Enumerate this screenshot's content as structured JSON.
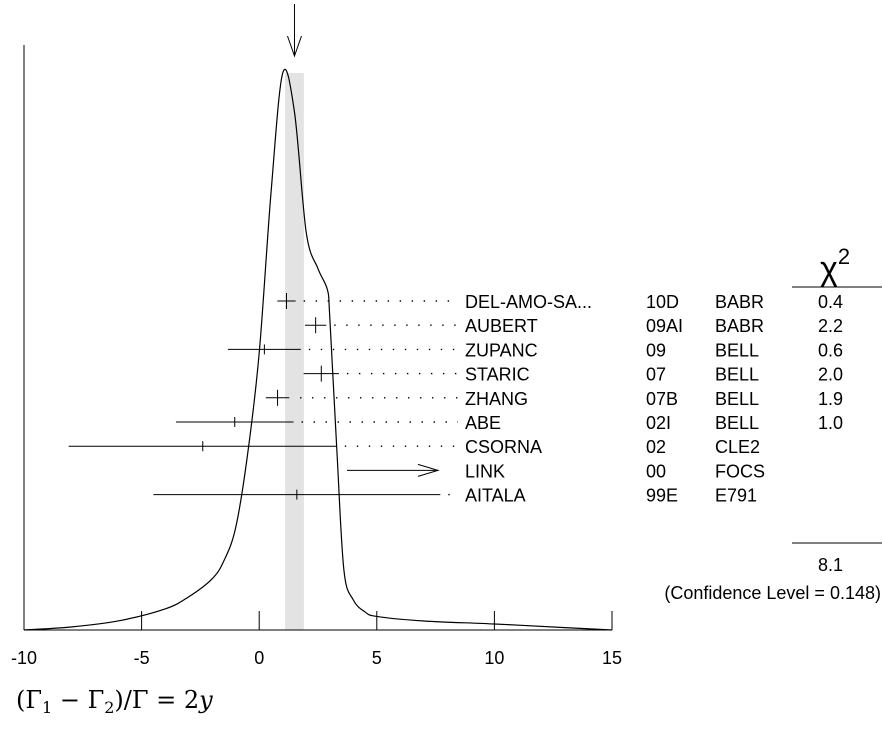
{
  "chart_data": {
    "type": "ideogram",
    "x_axis": {
      "range": [
        -10,
        15
      ],
      "ticks": [
        -10,
        -5,
        0,
        5,
        10,
        15
      ],
      "tick_labels": [
        "-10",
        "-5",
        "0",
        "5",
        "10",
        "15"
      ],
      "label_parts": {
        "open": "(Γ",
        "sub1": "1",
        "mid": " − Γ",
        "sub2": "2",
        "close": ")/Γ = 2",
        "var": "y"
      }
    },
    "average": {
      "value": 1.5,
      "error_band": [
        1.1,
        1.9
      ]
    },
    "chi2_header": {
      "symbol": "χ",
      "power": "2"
    },
    "measurements": [
      {
        "name": "DEL-AMO-SA...",
        "year": "10D",
        "experiment": "BABR",
        "value": 1.16,
        "error": 0.39,
        "chi2": "0.4"
      },
      {
        "name": "AUBERT",
        "year": "09AI",
        "experiment": "BABR",
        "value": 2.4,
        "error": 0.45,
        "chi2": "2.2"
      },
      {
        "name": "ZUPANC",
        "year": "09",
        "experiment": "BELL",
        "value": 0.22,
        "error": 1.55,
        "chi2": "0.6"
      },
      {
        "name": "STARIC",
        "year": "07",
        "experiment": "BELL",
        "value": 2.64,
        "error": 0.75,
        "chi2": "2.0"
      },
      {
        "name": "ZHANG",
        "year": "07B",
        "experiment": "BELL",
        "value": 0.78,
        "error": 0.5,
        "chi2": "1.9"
      },
      {
        "name": "ABE",
        "year": "02I",
        "experiment": "BELL",
        "value": -1.04,
        "error": 2.5,
        "chi2": "1.0"
      },
      {
        "name": "CSORNA",
        "year": "02",
        "experiment": "CLE2",
        "value": -2.4,
        "error": 5.7,
        "chi2": ""
      },
      {
        "name": "LINK",
        "year": "00",
        "experiment": "FOCS",
        "lower_limit": 3.7,
        "chi2": ""
      },
      {
        "name": "AITALA",
        "year": "99E",
        "experiment": "E791",
        "value": 1.6,
        "error": 6.1,
        "chi2": ""
      }
    ],
    "chi2_total": "8.1",
    "confidence_level": "(Confidence Level = 0.148)",
    "ideogram_curve": [
      [
        -10,
        0.0
      ],
      [
        -8,
        0.01
      ],
      [
        -6,
        0.03
      ],
      [
        -4,
        0.07
      ],
      [
        -3,
        0.11
      ],
      [
        -2,
        0.17
      ],
      [
        -1.5,
        0.23
      ],
      [
        -1,
        0.34
      ],
      [
        -0.5,
        0.58
      ],
      [
        0,
        0.92
      ],
      [
        0.5,
        1.45
      ],
      [
        1,
        1.85
      ],
      [
        1.5,
        1.72
      ],
      [
        2,
        1.32
      ],
      [
        2.5,
        1.2
      ],
      [
        2.9,
        1.13
      ],
      [
        3,
        1.04
      ],
      [
        3.3,
        0.6
      ],
      [
        3.6,
        0.2
      ],
      [
        4,
        0.1
      ],
      [
        4.5,
        0.06
      ],
      [
        5,
        0.045
      ],
      [
        7,
        0.03
      ],
      [
        10,
        0.02
      ],
      [
        13,
        0.008
      ],
      [
        15,
        0.0
      ]
    ]
  }
}
